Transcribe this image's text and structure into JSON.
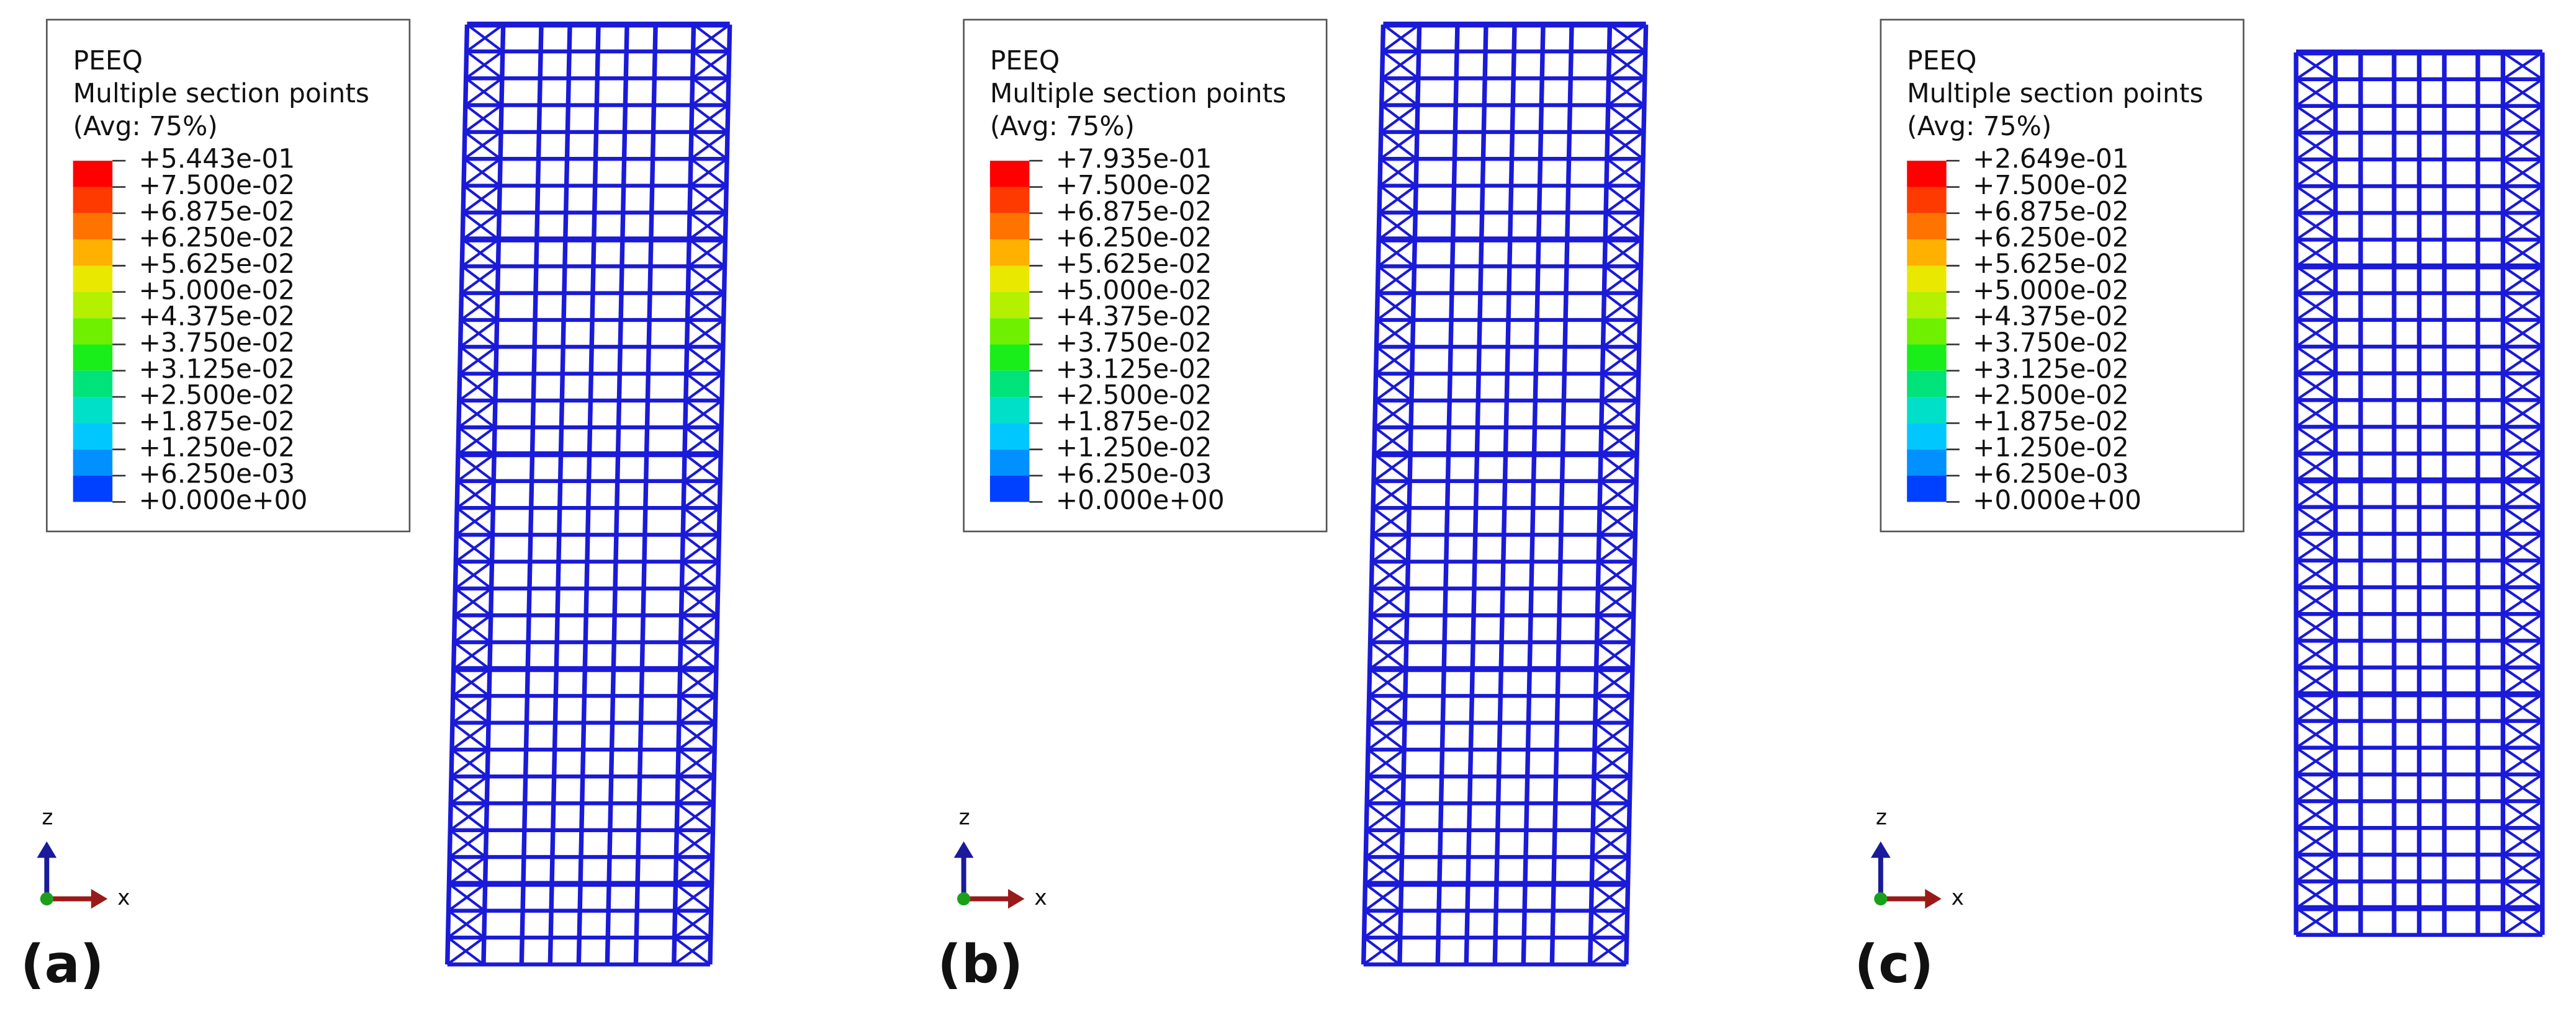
{
  "legend_colors": [
    "#ff0000",
    "#ff3a00",
    "#ff7400",
    "#ffb000",
    "#e8e800",
    "#b4f000",
    "#6ef000",
    "#1aee1a",
    "#00e27a",
    "#00e0c8",
    "#00c8ff",
    "#0090ff",
    "#0040ff"
  ],
  "panels": [
    {
      "label": "(a)",
      "legend_title": "PEEQ",
      "legend_subtitle": "Multiple section points",
      "legend_avg": "(Avg: 75%)",
      "legend_labels": [
        "+5.443e-01",
        "+7.500e-02",
        "+6.875e-02",
        "+6.250e-02",
        "+5.625e-02",
        "+5.000e-02",
        "+4.375e-02",
        "+3.750e-02",
        "+3.125e-02",
        "+2.500e-02",
        "+1.875e-02",
        "+1.250e-02",
        "+6.250e-03",
        "+0.000e+00"
      ],
      "axis_z": "z",
      "axis_x": "x"
    },
    {
      "label": "(b)",
      "legend_title": "PEEQ",
      "legend_subtitle": "Multiple section points",
      "legend_avg": "(Avg: 75%)",
      "legend_labels": [
        "+7.935e-01",
        "+7.500e-02",
        "+6.875e-02",
        "+6.250e-02",
        "+5.625e-02",
        "+5.000e-02",
        "+4.375e-02",
        "+3.750e-02",
        "+3.125e-02",
        "+2.500e-02",
        "+1.875e-02",
        "+1.250e-02",
        "+6.250e-03",
        "+0.000e+00"
      ],
      "axis_z": "z",
      "axis_x": "x"
    },
    {
      "label": "(c)",
      "legend_title": "PEEQ",
      "legend_subtitle": "Multiple section points",
      "legend_avg": "(Avg: 75%)",
      "legend_labels": [
        "+2.649e-01",
        "+7.500e-02",
        "+6.875e-02",
        "+6.250e-02",
        "+5.625e-02",
        "+5.000e-02",
        "+4.375e-02",
        "+3.750e-02",
        "+3.125e-02",
        "+2.500e-02",
        "+1.875e-02",
        "+1.250e-02",
        "+6.250e-03",
        "+0.000e+00"
      ],
      "axis_z": "z",
      "axis_x": "x"
    }
  ]
}
